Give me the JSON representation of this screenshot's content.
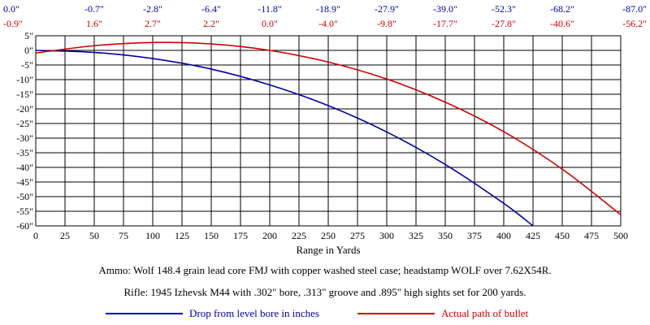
{
  "chart_data": {
    "type": "line",
    "xlabel": "Range in Yards",
    "ylabel": "",
    "x_ticks": [
      0,
      25,
      50,
      75,
      100,
      125,
      150,
      175,
      200,
      225,
      250,
      275,
      300,
      325,
      350,
      375,
      400,
      425,
      450,
      475,
      500
    ],
    "y_ticks": [
      "5\"",
      "0\"",
      "-5\"",
      "-10\"",
      "-15\"",
      "-20\"",
      "-25\"",
      "-30\"",
      "-35\"",
      "-40\"",
      "-45\"",
      "-50\"",
      "-55\"",
      "-60\""
    ],
    "y_tick_values": [
      5,
      0,
      -5,
      -10,
      -15,
      -20,
      -25,
      -30,
      -35,
      -40,
      -45,
      -50,
      -55,
      -60
    ],
    "xlim": [
      0,
      500
    ],
    "ylim": [
      -60,
      5
    ],
    "grid": true,
    "legend_position": "bottom",
    "top_row_blue": [
      "0.0\"",
      "-0.7\"",
      "-2.8\"",
      "-6.4\"",
      "-11.8\"",
      "-18.9\"",
      "-27.9\"",
      "-39.0\"",
      "-52.3\"",
      "-68.2\"",
      "-87.0\""
    ],
    "top_row_red": [
      "-0.9\"",
      "1.6\"",
      "2.7\"",
      "2.2\"",
      "0.0\"",
      "-4.0\"",
      "-9.8\"",
      "-17.7\"",
      "-27.8\"",
      "-40.6\"",
      "-56.2\""
    ],
    "series": [
      {
        "name": "Drop from level bore in inches",
        "color": "#0000aa",
        "x": [
          0,
          50,
          100,
          150,
          200,
          250,
          300,
          350,
          400,
          425
        ],
        "y": [
          0.0,
          -0.7,
          -2.8,
          -6.4,
          -11.8,
          -18.9,
          -27.9,
          -39.0,
          -52.3,
          -60.0
        ]
      },
      {
        "name": "Actual path of bullet",
        "color": "#cc0000",
        "x": [
          0,
          50,
          100,
          150,
          200,
          250,
          300,
          350,
          400,
          450,
          500
        ],
        "y": [
          -0.9,
          1.6,
          2.7,
          2.2,
          0.0,
          -4.0,
          -9.8,
          -17.7,
          -27.8,
          -40.6,
          -56.2
        ]
      }
    ]
  },
  "notes": {
    "ammo": "Ammo:  Wolf 148.4 grain lead core FMJ with copper washed steel case; headstamp WOLF over 7.62X54R.",
    "rifle": "Rifle:  1945 Izhevsk M44 with .302\" bore, .313\" groove and .895\" high sights set for 200 yards."
  }
}
